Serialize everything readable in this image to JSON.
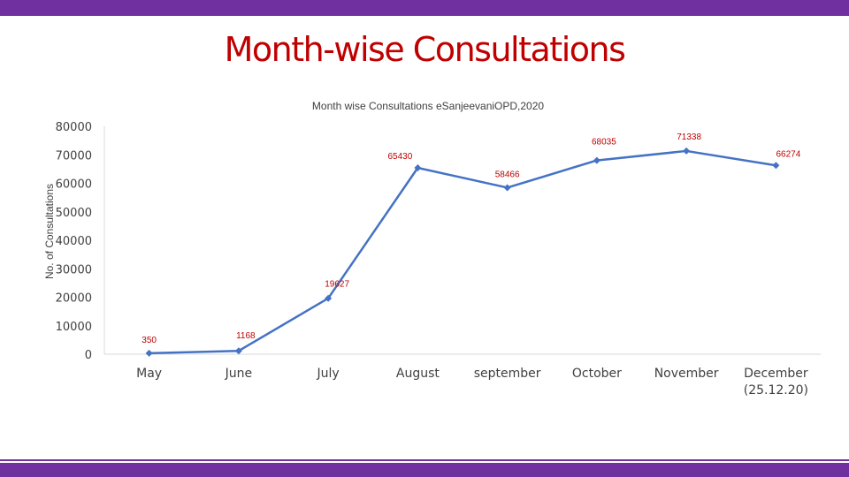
{
  "slide": {
    "title": "Month-wise Consultations",
    "colors": {
      "top_bar": "#7030a0",
      "title": "#c00000",
      "series": "#4472c4",
      "data_label": "#c00000"
    }
  },
  "chart_data": {
    "type": "line",
    "title": "Month wise Consultations eSanjeevaniOPD,2020",
    "xlabel": "",
    "ylabel": "No. of Consultations",
    "ylim": [
      0,
      80000
    ],
    "yticks": [
      0,
      10000,
      20000,
      30000,
      40000,
      50000,
      60000,
      70000,
      80000
    ],
    "grid": false,
    "categories": [
      "May",
      "June",
      "July",
      "August",
      "september",
      "October",
      "November",
      "December\n(25.12.20)"
    ],
    "series": [
      {
        "name": "Consultations",
        "values": [
          350,
          1168,
          19627,
          65430,
          58466,
          68035,
          71338,
          66274
        ]
      }
    ],
    "data_labels": [
      "350",
      "1168",
      "19627",
      "65430",
      "58466",
      "68035",
      "71338",
      "66274"
    ]
  }
}
